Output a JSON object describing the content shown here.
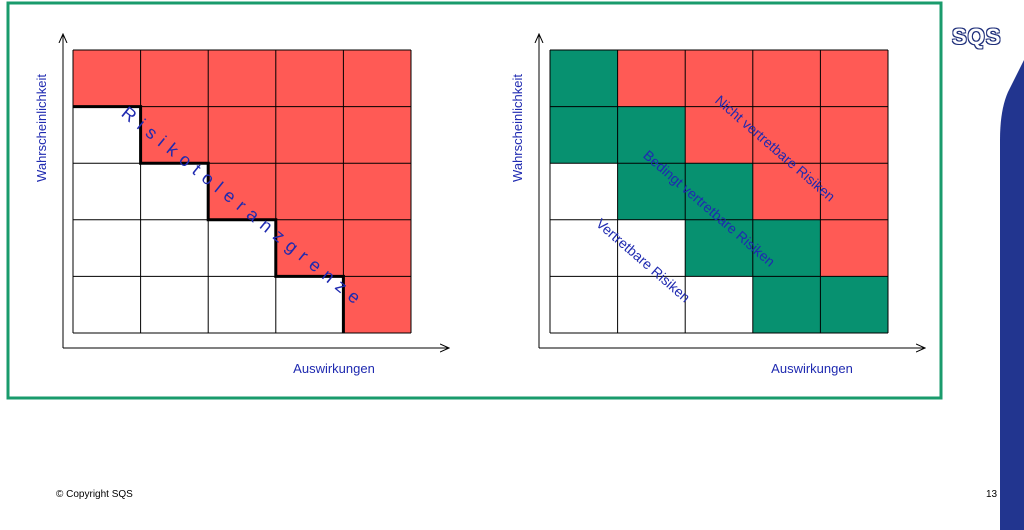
{
  "colors": {
    "frame": "#1a9b6c",
    "red": "#ff5a55",
    "green": "#079170",
    "text_blue": "#1f2ab0",
    "band_blue": "#22358f"
  },
  "logo_text": "SQS",
  "left_diagram": {
    "y_axis_label": "Wahrscheinlichkeit",
    "x_axis_label": "Auswirkungen",
    "curve_label": "Risikotoleranzgrenze",
    "grid": [
      [
        "red",
        "red",
        "red",
        "red",
        "red"
      ],
      [
        "white",
        "red",
        "red",
        "red",
        "red"
      ],
      [
        "white",
        "white",
        "red",
        "red",
        "red"
      ],
      [
        "white",
        "white",
        "white",
        "red",
        "red"
      ],
      [
        "white",
        "white",
        "white",
        "white",
        "red"
      ]
    ]
  },
  "right_diagram": {
    "y_axis_label": "Wahrscheinlichkeit",
    "x_axis_label": "Auswirkungen",
    "zone_labels": {
      "not_acceptable": "Nicht vertretbare Risiken",
      "conditional": "Bedingt vertretbare Risiken",
      "acceptable": "Vertretbare Risiken"
    },
    "grid": [
      [
        "green",
        "red",
        "red",
        "red",
        "red"
      ],
      [
        "green",
        "green",
        "red",
        "red",
        "red"
      ],
      [
        "white",
        "green",
        "green",
        "red",
        "red"
      ],
      [
        "white",
        "white",
        "green",
        "green",
        "red"
      ],
      [
        "white",
        "white",
        "white",
        "green",
        "green"
      ]
    ]
  },
  "footer": {
    "copyright": "© Copyright SQS",
    "page_number": "13"
  }
}
